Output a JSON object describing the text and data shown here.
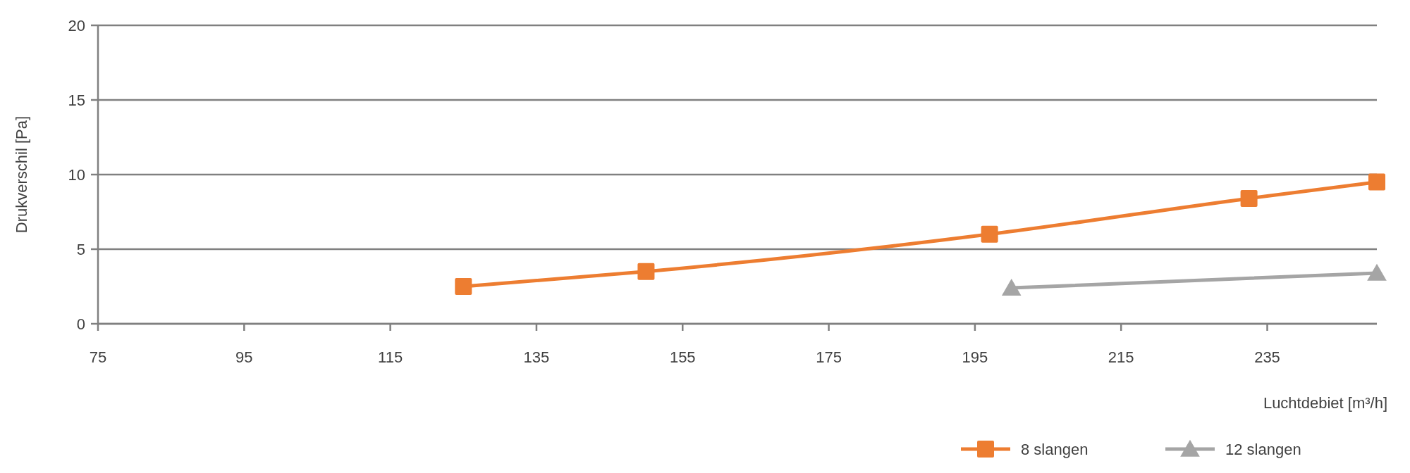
{
  "chart_data": {
    "type": "line",
    "xlabel": "Luchtdebiet [m³/h]",
    "ylabel": "Drukverschil [Pa]",
    "xlim": [
      75,
      250
    ],
    "xticks": [
      75,
      95,
      115,
      135,
      155,
      175,
      195,
      215,
      235
    ],
    "ylim": [
      0,
      20
    ],
    "yticks": [
      0,
      5,
      10,
      15,
      20
    ],
    "grid": "y",
    "legend": "bottom right",
    "line_style": "solid",
    "series": [
      {
        "name": "8 slangen",
        "color": "#ed7d31",
        "marker": "square",
        "x": [
          125,
          150,
          197,
          232.5,
          250
        ],
        "values": [
          2.5,
          3.5,
          6,
          8.4,
          9.5
        ]
      },
      {
        "name": "12 slangen",
        "color": "#a5a5a5",
        "marker": "triangle",
        "x": [
          200,
          250
        ],
        "values": [
          2.4,
          3.4
        ]
      }
    ]
  }
}
